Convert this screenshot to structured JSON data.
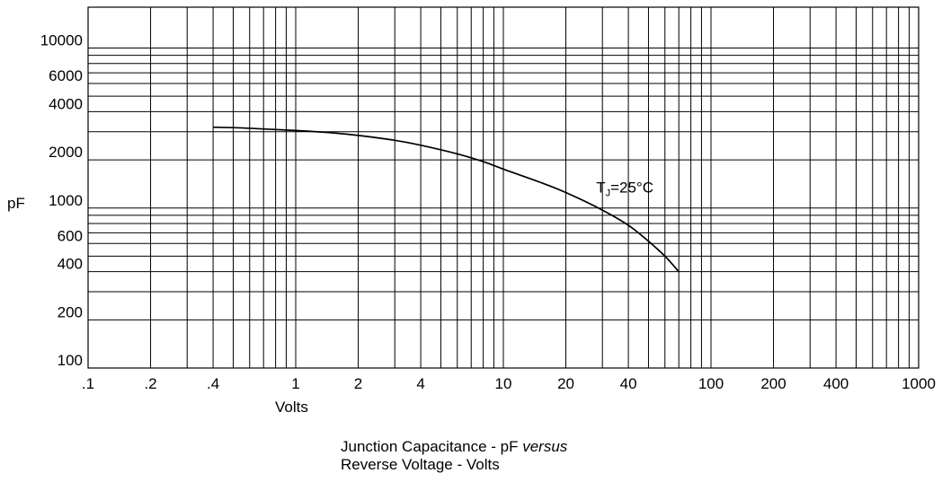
{
  "chart_data": {
    "type": "line",
    "scale": {
      "x": "log",
      "y": "log"
    },
    "xlim": [
      0.1,
      1000
    ],
    "ylim": [
      100,
      18000
    ],
    "grid": true,
    "xlabel": "Volts",
    "ylabel": "pF",
    "caption_line1": "Junction Capacitance - pF ",
    "caption_line1_italic": "versus",
    "caption_line2": "Reverse Voltage - Volts",
    "x_ticks": [
      {
        "value": 0.1,
        "label": ".1"
      },
      {
        "value": 0.2,
        "label": ".2"
      },
      {
        "value": 0.4,
        "label": ".4"
      },
      {
        "value": 1,
        "label": "1"
      },
      {
        "value": 2,
        "label": "2"
      },
      {
        "value": 4,
        "label": "4"
      },
      {
        "value": 10,
        "label": "10"
      },
      {
        "value": 20,
        "label": "20"
      },
      {
        "value": 40,
        "label": "40"
      },
      {
        "value": 100,
        "label": "100"
      },
      {
        "value": 200,
        "label": "200"
      },
      {
        "value": 400,
        "label": "400"
      },
      {
        "value": 1000,
        "label": "1000"
      }
    ],
    "y_ticks": [
      {
        "value": 100,
        "label": "100"
      },
      {
        "value": 200,
        "label": "200"
      },
      {
        "value": 400,
        "label": "400"
      },
      {
        "value": 600,
        "label": "600"
      },
      {
        "value": 1000,
        "label": "1000"
      },
      {
        "value": 2000,
        "label": "2000"
      },
      {
        "value": 4000,
        "label": "4000"
      },
      {
        "value": 6000,
        "label": "6000"
      },
      {
        "value": 10000,
        "label": "10000"
      }
    ],
    "annotation": {
      "main": "T",
      "sub": "J",
      "rest": "=25°C",
      "x": 30,
      "y": 1250
    },
    "series": [
      {
        "x": [
          0.4,
          0.5,
          0.7,
          1,
          1.5,
          2,
          3,
          4,
          6,
          8,
          10,
          15,
          20,
          30,
          40,
          50,
          60,
          70
        ],
        "y": [
          3200,
          3180,
          3120,
          3050,
          2950,
          2840,
          2650,
          2470,
          2180,
          1950,
          1750,
          1450,
          1250,
          970,
          780,
          620,
          500,
          400
        ]
      }
    ]
  }
}
